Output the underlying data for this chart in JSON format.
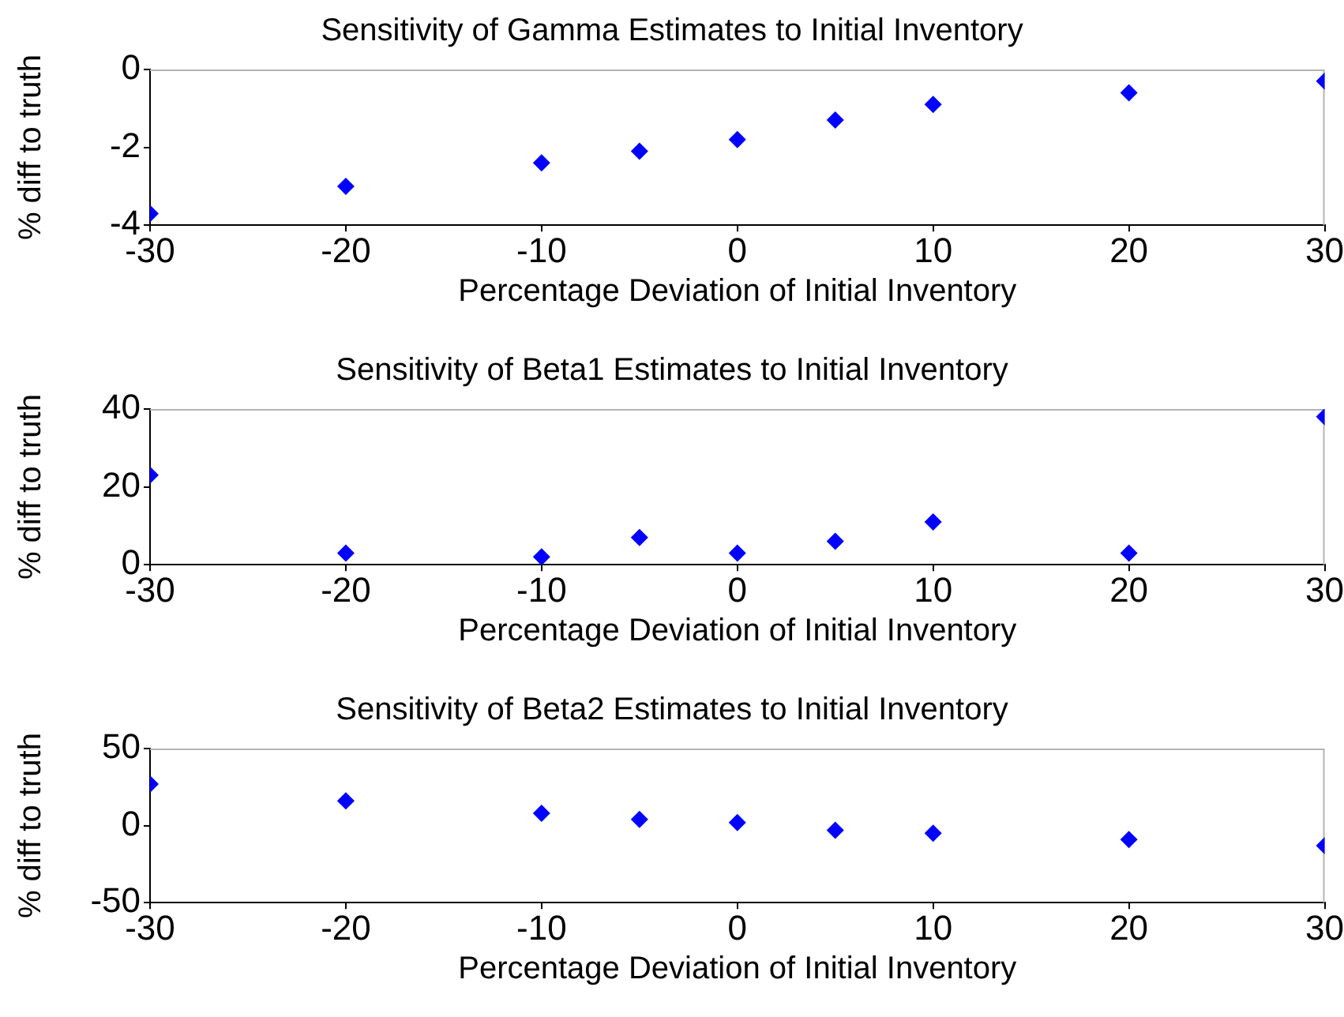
{
  "chart_data": [
    {
      "type": "scatter",
      "title": "Sensitivity of Gamma Estimates to Initial Inventory",
      "xlabel": "Percentage Deviation of Initial Inventory",
      "ylabel": "% diff to truth",
      "x": [
        -30,
        -20,
        -10,
        -5,
        0,
        5,
        10,
        20,
        30
      ],
      "values": [
        -3.7,
        -3.0,
        -2.4,
        -2.1,
        -1.8,
        -1.3,
        -0.9,
        -0.6,
        -0.3
      ],
      "color": "#0000ff",
      "xlim": [
        -30,
        30
      ],
      "ylim": [
        -4,
        0
      ],
      "xticks": [
        -30,
        -20,
        -10,
        0,
        10,
        20,
        30
      ],
      "yticks": [
        -4,
        -2,
        0
      ],
      "marker": "diamond",
      "grid": false,
      "legend": false
    },
    {
      "type": "scatter",
      "title": "Sensitivity of Beta1 Estimates to Initial Inventory",
      "xlabel": "Percentage Deviation of Initial Inventory",
      "ylabel": "% diff to truth",
      "x": [
        -30,
        -20,
        -10,
        -5,
        0,
        5,
        10,
        20,
        30
      ],
      "values": [
        23,
        3,
        2,
        7,
        3,
        6,
        11,
        3,
        38
      ],
      "color": "#0000ff",
      "xlim": [
        -30,
        30
      ],
      "ylim": [
        0,
        40
      ],
      "xticks": [
        -30,
        -20,
        -10,
        0,
        10,
        20,
        30
      ],
      "yticks": [
        0,
        20,
        40
      ],
      "marker": "diamond",
      "grid": false,
      "legend": false
    },
    {
      "type": "scatter",
      "title": "Sensitivity of Beta2 Estimates to Initial Inventory",
      "xlabel": "Percentage Deviation of Initial Inventory",
      "ylabel": "% diff to truth",
      "x": [
        -30,
        -20,
        -10,
        -5,
        0,
        5,
        10,
        20,
        30
      ],
      "values": [
        27,
        16,
        8,
        4,
        2,
        -3,
        -5,
        -9,
        -13
      ],
      "color": "#0000ff",
      "xlim": [
        -30,
        30
      ],
      "ylim": [
        -50,
        50
      ],
      "xticks": [
        -30,
        -20,
        -10,
        0,
        10,
        20,
        30
      ],
      "yticks": [
        -50,
        0,
        50
      ],
      "marker": "diamond",
      "grid": false,
      "legend": false
    }
  ]
}
